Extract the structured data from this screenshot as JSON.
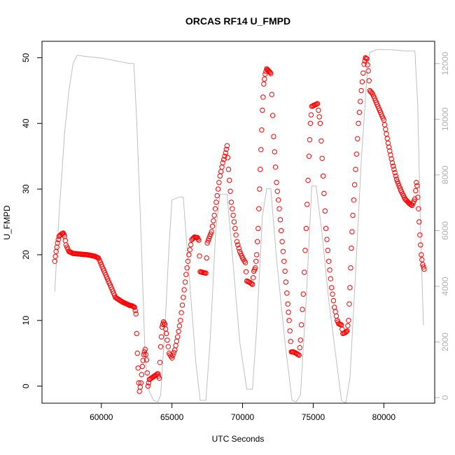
{
  "chart_data": {
    "type": "scatter",
    "title": "ORCAS RF14 U_FMPD",
    "xlabel": "UTC Seconds",
    "ylabel": "U_FMPD",
    "xlim": [
      55800,
      83600
    ],
    "ylim": [
      -2.6,
      52.5
    ],
    "y2lim": [
      -200,
      12800
    ],
    "grid": false,
    "x_ticks": [
      60000,
      65000,
      70000,
      75000,
      80000
    ],
    "y_ticks": [
      0,
      10,
      20,
      30,
      40,
      50
    ],
    "y2_ticks": [
      0,
      2000,
      4000,
      6000,
      8000,
      10000,
      12000
    ],
    "colors": {
      "points": "#ff0000",
      "secondary_line": "#bfbfbf"
    },
    "series": [
      {
        "kind": "points",
        "values": [
          [
            56700,
            19
          ],
          [
            56800,
            20.5
          ],
          [
            56900,
            21.8
          ],
          [
            57000,
            22.8
          ],
          [
            57200,
            23.2
          ],
          [
            57300,
            23.3
          ],
          [
            57400,
            22.8
          ],
          [
            57500,
            21.5
          ],
          [
            57700,
            20.5
          ],
          [
            58000,
            20.2
          ],
          [
            58500,
            20.1
          ],
          [
            59000,
            20
          ],
          [
            59500,
            19.8
          ],
          [
            59800,
            19.5
          ],
          [
            60000,
            18.5
          ],
          [
            60500,
            16
          ],
          [
            61000,
            13.5
          ],
          [
            61500,
            12.8
          ],
          [
            62000,
            12.3
          ],
          [
            62200,
            12.2
          ],
          [
            62350,
            12
          ],
          [
            62450,
            11
          ],
          [
            62550,
            5
          ],
          [
            62650,
            0.5
          ],
          [
            62700,
            -0.8
          ],
          [
            62800,
            0.5
          ],
          [
            62900,
            3
          ],
          [
            63000,
            4.8
          ],
          [
            63100,
            5.6
          ],
          [
            63200,
            4
          ],
          [
            63300,
            0
          ],
          [
            63400,
            1
          ],
          [
            63600,
            1.3
          ],
          [
            63800,
            1.6
          ],
          [
            64000,
            1.9
          ],
          [
            64100,
            1.2
          ],
          [
            64200,
            6
          ],
          [
            64300,
            9
          ],
          [
            64400,
            9.8
          ],
          [
            64500,
            9.4
          ],
          [
            64600,
            8
          ],
          [
            64800,
            5
          ],
          [
            65000,
            4.3
          ],
          [
            65200,
            5.5
          ],
          [
            65400,
            7.5
          ],
          [
            65600,
            10
          ],
          [
            65800,
            13.5
          ],
          [
            66000,
            17
          ],
          [
            66200,
            20
          ],
          [
            66400,
            22.3
          ],
          [
            66600,
            22.7
          ],
          [
            66800,
            22.6
          ],
          [
            66900,
            22.2
          ],
          [
            67000,
            17.4
          ],
          [
            67200,
            17.3
          ],
          [
            67400,
            17.2
          ],
          [
            67500,
            21.8
          ],
          [
            67800,
            23.5
          ],
          [
            68000,
            26
          ],
          [
            68200,
            29
          ],
          [
            68400,
            32
          ],
          [
            68600,
            34
          ],
          [
            68800,
            35.5
          ],
          [
            68900,
            36.6
          ],
          [
            69000,
            33
          ],
          [
            69200,
            28
          ],
          [
            69400,
            25
          ],
          [
            69600,
            22
          ],
          [
            69800,
            20.5
          ],
          [
            70000,
            19.5
          ],
          [
            70200,
            18.8
          ],
          [
            70300,
            16
          ],
          [
            70500,
            15.8
          ],
          [
            70700,
            15.5
          ],
          [
            70800,
            17.5
          ],
          [
            70900,
            18
          ],
          [
            71000,
            20
          ],
          [
            71100,
            24
          ],
          [
            71200,
            30
          ],
          [
            71300,
            36
          ],
          [
            71400,
            42
          ],
          [
            71500,
            46
          ],
          [
            71600,
            47.5
          ],
          [
            71700,
            48.3
          ],
          [
            71800,
            48.1
          ],
          [
            71900,
            47.9
          ],
          [
            72000,
            47.6
          ],
          [
            72200,
            38
          ],
          [
            72400,
            31
          ],
          [
            72600,
            27
          ],
          [
            72800,
            22
          ],
          [
            73000,
            17.5
          ],
          [
            73200,
            12.5
          ],
          [
            73300,
            10
          ],
          [
            73450,
            5.2
          ],
          [
            73600,
            5.2
          ],
          [
            73800,
            5
          ],
          [
            74000,
            4.7
          ],
          [
            74100,
            7
          ],
          [
            74300,
            14
          ],
          [
            74500,
            24
          ],
          [
            74700,
            35
          ],
          [
            74800,
            40
          ],
          [
            74900,
            42.6
          ],
          [
            75100,
            42.8
          ],
          [
            75300,
            43
          ],
          [
            75500,
            40
          ],
          [
            75700,
            32
          ],
          [
            75900,
            24
          ],
          [
            76100,
            19
          ],
          [
            76300,
            15
          ],
          [
            76500,
            12
          ],
          [
            76700,
            10
          ],
          [
            76800,
            9.5
          ],
          [
            77000,
            9.3
          ],
          [
            77100,
            8
          ],
          [
            77300,
            8.2
          ],
          [
            77400,
            8.4
          ],
          [
            77500,
            10
          ],
          [
            77600,
            15
          ],
          [
            77700,
            21
          ],
          [
            77800,
            26
          ],
          [
            78000,
            33
          ],
          [
            78200,
            40
          ],
          [
            78400,
            45
          ],
          [
            78600,
            49
          ],
          [
            78700,
            50
          ],
          [
            78800,
            49.8
          ],
          [
            78900,
            48
          ],
          [
            79000,
            45
          ],
          [
            79200,
            44.5
          ],
          [
            79400,
            43.5
          ],
          [
            79700,
            42
          ],
          [
            80000,
            40.5
          ],
          [
            80300,
            37
          ],
          [
            80600,
            34
          ],
          [
            80900,
            31.5
          ],
          [
            81200,
            29.8
          ],
          [
            81500,
            28.5
          ],
          [
            81800,
            27.8
          ],
          [
            82000,
            27.5
          ],
          [
            82200,
            28.5
          ],
          [
            82300,
            31
          ],
          [
            82350,
            30.5
          ],
          [
            82450,
            27
          ],
          [
            82550,
            23
          ],
          [
            82650,
            20
          ],
          [
            82750,
            18.5
          ],
          [
            82850,
            17.8
          ]
        ]
      },
      {
        "kind": "line",
        "axis": "right",
        "values": [
          [
            56700,
            3800
          ],
          [
            57000,
            6500
          ],
          [
            57400,
            9500
          ],
          [
            57700,
            11000
          ],
          [
            58000,
            12000
          ],
          [
            58300,
            12300
          ],
          [
            59000,
            12250
          ],
          [
            60000,
            12200
          ],
          [
            61000,
            12100
          ],
          [
            62000,
            12000
          ],
          [
            62300,
            12000
          ],
          [
            62500,
            10000
          ],
          [
            62800,
            6000
          ],
          [
            63100,
            1500
          ],
          [
            63400,
            200
          ],
          [
            63700,
            -100
          ],
          [
            64000,
            -150
          ],
          [
            64200,
            100
          ],
          [
            64500,
            2500
          ],
          [
            64800,
            5500
          ],
          [
            65000,
            7100
          ],
          [
            65500,
            7200
          ],
          [
            65800,
            7200
          ],
          [
            66200,
            4500
          ],
          [
            66700,
            1200
          ],
          [
            67000,
            -100
          ],
          [
            67400,
            -100
          ],
          [
            67700,
            2000
          ],
          [
            68100,
            6000
          ],
          [
            68400,
            7300
          ],
          [
            68900,
            7300
          ],
          [
            69300,
            5000
          ],
          [
            69800,
            2000
          ],
          [
            70300,
            300
          ],
          [
            70700,
            300
          ],
          [
            71000,
            2500
          ],
          [
            71400,
            6500
          ],
          [
            71700,
            7500
          ],
          [
            72000,
            7500
          ],
          [
            72400,
            5000
          ],
          [
            73000,
            2000
          ],
          [
            73500,
            -100
          ],
          [
            73800,
            -150
          ],
          [
            74100,
            100
          ],
          [
            74500,
            3500
          ],
          [
            74900,
            7600
          ],
          [
            75200,
            7600
          ],
          [
            75600,
            6000
          ],
          [
            76100,
            3500
          ],
          [
            76600,
            1500
          ],
          [
            77000,
            -100
          ],
          [
            77300,
            -200
          ],
          [
            77600,
            700
          ],
          [
            78000,
            4500
          ],
          [
            78400,
            8500
          ],
          [
            78800,
            11500
          ],
          [
            79000,
            12400
          ],
          [
            79500,
            12500
          ],
          [
            80500,
            12500
          ],
          [
            81500,
            12450
          ],
          [
            82200,
            12450
          ],
          [
            82400,
            10500
          ],
          [
            82600,
            6000
          ],
          [
            82800,
            2600
          ]
        ]
      }
    ]
  }
}
